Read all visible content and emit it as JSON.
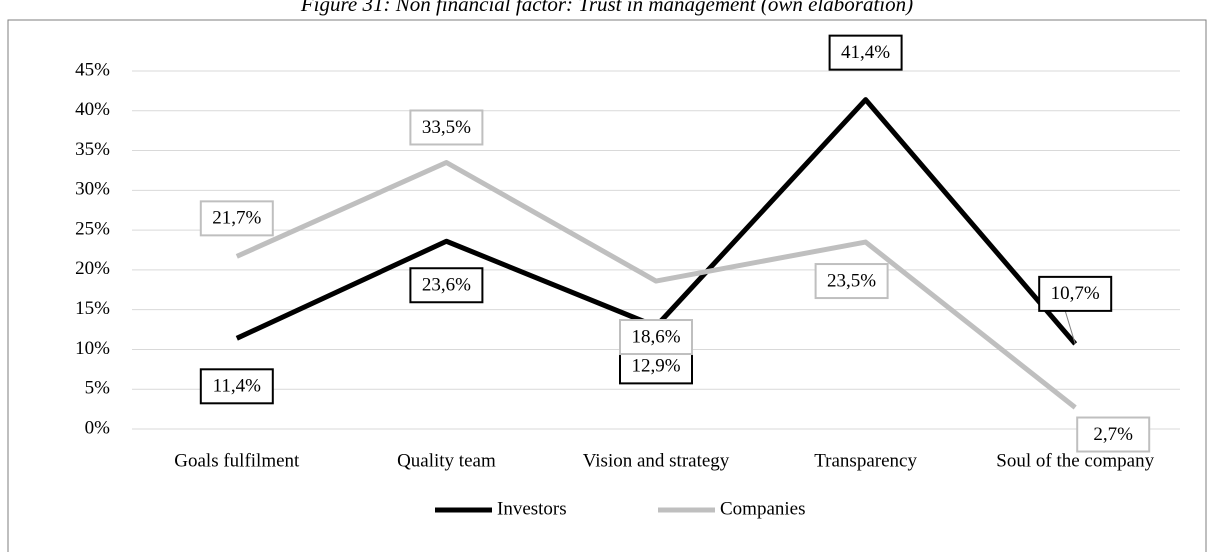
{
  "chart_data": {
    "type": "line",
    "title": "Figure 31: Non financial factor: Trust in management (own elaboration)",
    "categories": [
      "Goals fulfilment",
      "Quality team",
      "Vision and strategy",
      "Transparency",
      "Soul of the company"
    ],
    "series": [
      {
        "name": "Investors",
        "color": "#000000",
        "values": [
          11.4,
          23.6,
          12.9,
          41.4,
          10.7
        ],
        "value_labels": [
          "11,4%",
          "23,6%",
          "12,9%",
          "41,4%",
          "10,7%"
        ]
      },
      {
        "name": "Companies",
        "color": "#bfbfbf",
        "values": [
          21.7,
          33.5,
          18.6,
          23.5,
          2.7
        ],
        "value_labels": [
          "21,7%",
          "33,5%",
          "18,6%",
          "23,5%",
          "2,7%"
        ]
      }
    ],
    "ylim": [
      0,
      45
    ],
    "yticks": [
      {
        "value": 0,
        "label": "0%"
      },
      {
        "value": 5,
        "label": "5%"
      },
      {
        "value": 10,
        "label": "10%"
      },
      {
        "value": 15,
        "label": "15%"
      },
      {
        "value": 20,
        "label": "20%"
      },
      {
        "value": 25,
        "label": "25%"
      },
      {
        "value": 30,
        "label": "30%"
      },
      {
        "value": 35,
        "label": "35%"
      },
      {
        "value": 40,
        "label": "40%"
      },
      {
        "value": 45,
        "label": "45%"
      }
    ],
    "grid": true,
    "legend": "bottom"
  }
}
